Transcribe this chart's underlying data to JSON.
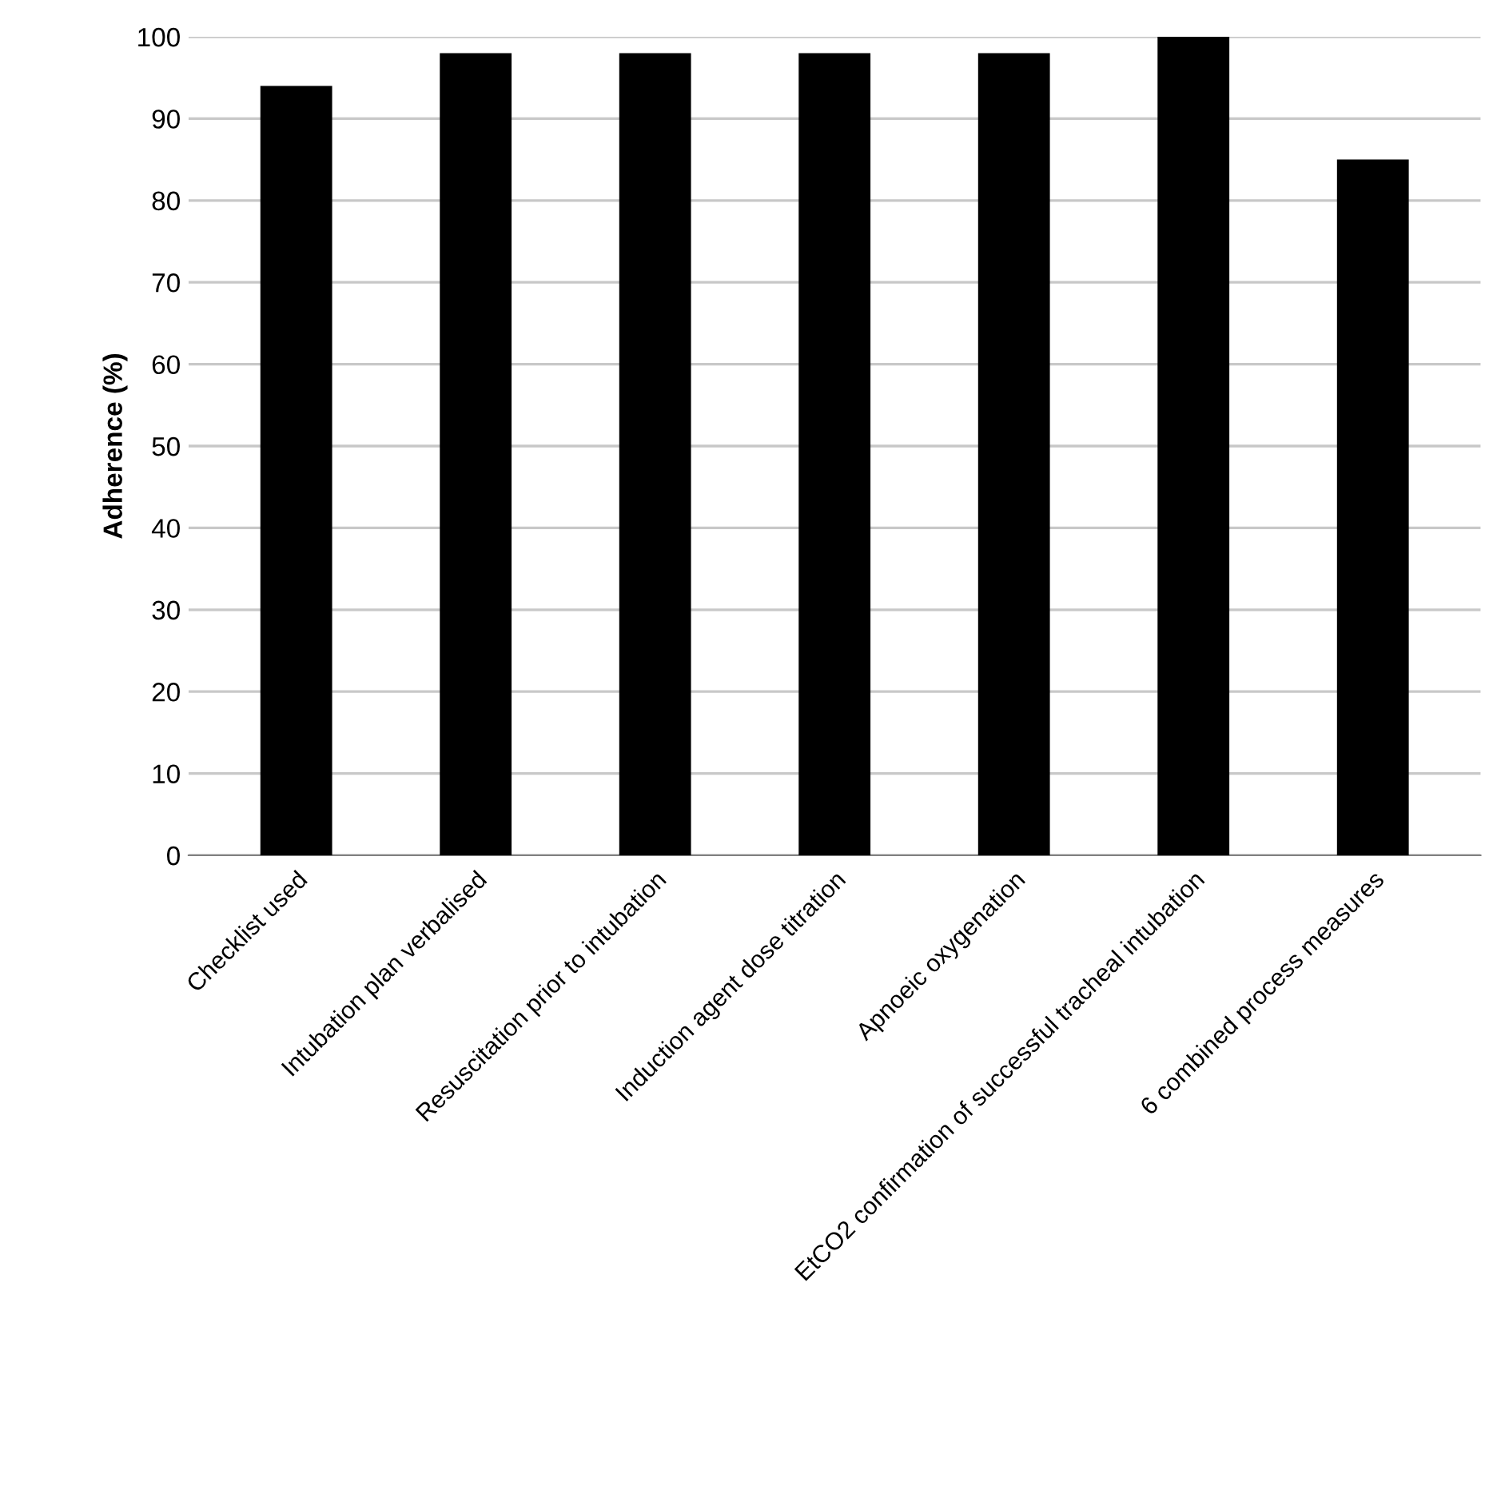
{
  "chart_data": {
    "type": "bar",
    "ylabel": "Adherence (%)",
    "categories": [
      "Checklist used",
      "Intubation plan verbalised",
      "Resuscitation prior to intubation",
      "Induction agent dose titration",
      "Apnoeic oxygenation",
      "EtCO2 confirmation of successful tracheal intubation",
      "6 combined process measures"
    ],
    "values": [
      94,
      98,
      98,
      98,
      98,
      100,
      85
    ],
    "color": "#000000",
    "ylim": [
      0,
      100
    ],
    "yticks": [
      0,
      10,
      20,
      30,
      40,
      50,
      60,
      70,
      80,
      90,
      100
    ],
    "grid": "y",
    "legend": false
  }
}
